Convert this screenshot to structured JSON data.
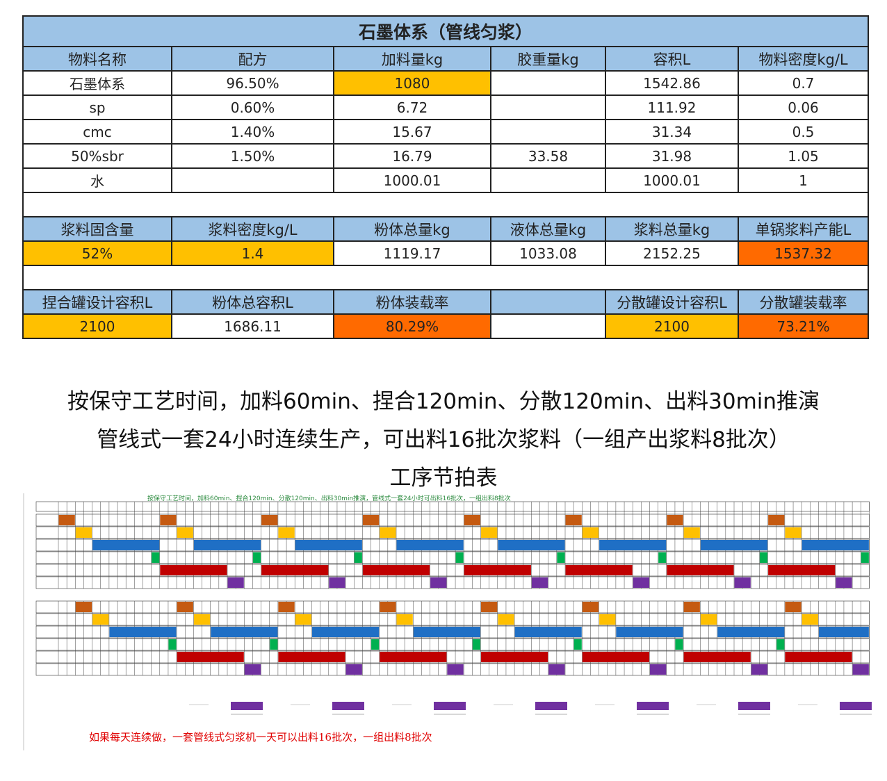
{
  "formula": {
    "title": "石墨体系（管线匀浆）",
    "headers": [
      "物料名称",
      "配方",
      "加料量kg",
      "胶重量kg",
      "容积L",
      "物料密度kg/L"
    ],
    "rows": [
      [
        "石墨体系",
        "96.50%",
        "1080",
        "",
        "1542.86",
        "0.7"
      ],
      [
        "sp",
        "0.60%",
        "6.72",
        "",
        "111.92",
        "0.06"
      ],
      [
        "cmc",
        "1.40%",
        "15.67",
        "",
        "31.34",
        "0.5"
      ],
      [
        "50%sbr",
        "1.50%",
        "16.79",
        "33.58",
        "31.98",
        "1.05"
      ],
      [
        "水",
        "",
        "1000.01",
        "",
        "1000.01",
        "1"
      ]
    ],
    "summary_headers": [
      "浆料固含量",
      "浆料密度kg/L",
      "粉体总量kg",
      "液体总量kg",
      "浆料总量kg",
      "单锅浆料产能L"
    ],
    "summary_values": [
      "52%",
      "1.4",
      "1119.17",
      "1033.08",
      "2152.25",
      "1537.32"
    ],
    "tank_headers": [
      "捏合罐设计容积L",
      "粉体总容积L",
      "粉体装载率",
      "",
      "分散罐设计容积L",
      "分散罐装载率"
    ],
    "tank_values": [
      "2100",
      "1686.11",
      "80.29%",
      "",
      "2100",
      "73.21%"
    ]
  },
  "description": {
    "line1": "按保守工艺时间，加料60min、捏合120min、分散120min、出料30min推演",
    "line2": "管线式一套24小时连续生产，可出料16批次浆料（一组产出浆料8批次）",
    "line3": "工序节拍表"
  },
  "schedule": {
    "top_caption": "按保守工艺时间，加料60min、捏合120min、分散120min、出料30min推演，管线式一套24小时可出料16批次，一组出料8批次",
    "note": "如果每天连续做，一套管线式匀浆机一天可以出料16批次，一组出料8批次",
    "colors": {
      "feed": "#c55a11",
      "aux": "#ffc000",
      "knead": "#1f6fc5",
      "transfer": "#00b050",
      "disperse": "#c00000",
      "discharge": "#7030a0"
    }
  }
}
